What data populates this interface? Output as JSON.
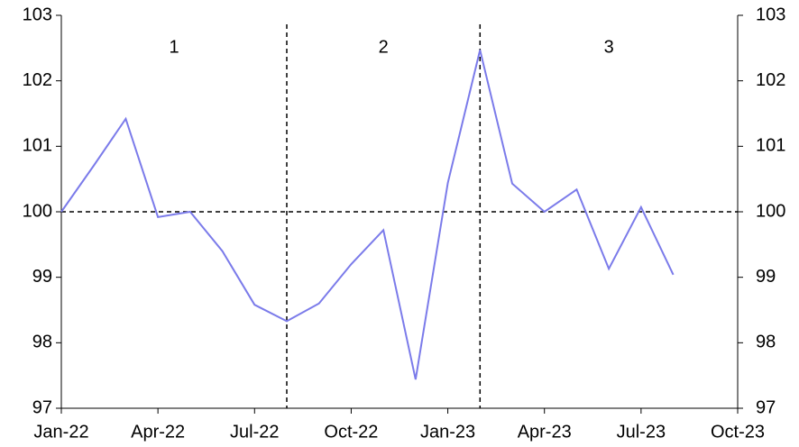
{
  "chart_data": {
    "type": "line",
    "categories": [
      "Jan-22",
      null,
      null,
      "Apr-22",
      null,
      null,
      "Jul-22",
      null,
      null,
      "Oct-22",
      null,
      null,
      "Jan-23",
      null,
      null,
      "Apr-23",
      null,
      null,
      "Jul-23",
      null,
      null,
      "Oct-23"
    ],
    "series": [
      {
        "color": "#7b7bea",
        "values": [
          100.0,
          100.7,
          101.42,
          99.92,
          100.0,
          99.4,
          98.58,
          98.33,
          98.6,
          99.2,
          99.72,
          97.44,
          100.44,
          102.47,
          100.43,
          100.0,
          100.34,
          99.13,
          100.07,
          99.04,
          null,
          null
        ]
      }
    ],
    "ylim": [
      97,
      103
    ],
    "yticks": [
      97,
      98,
      99,
      100,
      101,
      102,
      103
    ],
    "y2lim": [
      97,
      103
    ],
    "y2ticks": [
      97,
      98,
      99,
      100,
      101,
      102,
      103
    ],
    "hline": 100,
    "vlines": [
      7,
      13
    ],
    "annotations": [
      "1",
      "2",
      "3"
    ]
  }
}
